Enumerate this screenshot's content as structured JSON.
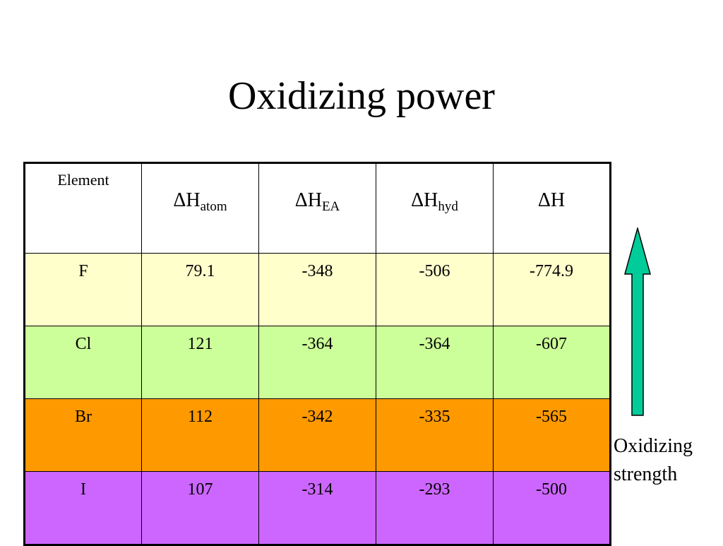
{
  "title": "Oxidizing power",
  "table": {
    "header": {
      "element": "Element",
      "columns": [
        {
          "symbol": "ΔH",
          "sub": "atom"
        },
        {
          "symbol": "ΔH",
          "sub": "EA"
        },
        {
          "symbol": "ΔH",
          "sub": "hyd"
        },
        {
          "symbol": "ΔH",
          "sub": ""
        }
      ]
    },
    "rows": [
      {
        "element": "F",
        "values": [
          "79.1",
          "-348",
          "-506",
          "-774.9"
        ],
        "color": "#ffffcc"
      },
      {
        "element": "Cl",
        "values": [
          "121",
          "-364",
          "-364",
          "-607"
        ],
        "color": "#ccff99"
      },
      {
        "element": "Br",
        "values": [
          "112",
          "-342",
          "-335",
          "-565"
        ],
        "color": "#ff9900"
      },
      {
        "element": "I",
        "values": [
          "107",
          "-314",
          "-293",
          "-500"
        ],
        "color": "#cc66ff"
      }
    ]
  },
  "arrow": {
    "direction": "up",
    "color": "#00cc99",
    "icon": "arrow-up-icon"
  },
  "caption": {
    "line1": "Oxidizing",
    "line2": "strength"
  }
}
